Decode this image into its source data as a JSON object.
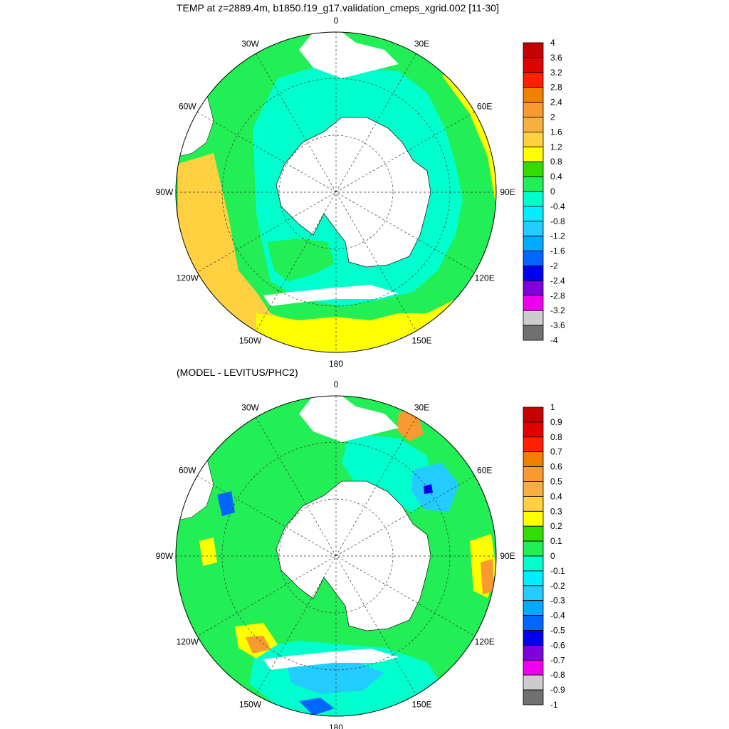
{
  "titles": {
    "top": "TEMP at z=2889.4m, b1850.f19_g17.validation_cmeps_xgrid.002 [11-30]",
    "bottom": "(MODEL - LEVITUS/PHC2)"
  },
  "longitude_labels": [
    "0",
    "30E",
    "60E",
    "90E",
    "120E",
    "150E",
    "180",
    "150W",
    "120W",
    "90W",
    "60W",
    "30W"
  ],
  "colorbars": {
    "top": {
      "labels": [
        "4",
        "3.6",
        "3.2",
        "2.8",
        "2.4",
        "2",
        "1.6",
        "1.2",
        "0.8",
        "0.4",
        "0",
        "-0.4",
        "-0.8",
        "-1.2",
        "-1.6",
        "-2",
        "-2.4",
        "-2.8",
        "-3.2",
        "-3.6",
        "-4"
      ],
      "colors": [
        "#c40000",
        "#e00000",
        "#ff2000",
        "#f08000",
        "#f89a30",
        "#f7b040",
        "#ffd040",
        "#ffff00",
        "#33dd00",
        "#22ee55",
        "#00ffcc",
        "#00eeff",
        "#22ccff",
        "#00aaff",
        "#0066ff",
        "#0000ee",
        "#8000dd",
        "#ee00ee",
        "#cccccc",
        "#707070"
      ]
    },
    "bottom": {
      "labels": [
        "1",
        "0.9",
        "0.8",
        "0.7",
        "0.6",
        "0.5",
        "0.4",
        "0.3",
        "0.2",
        "0.1",
        "0",
        "-0.1",
        "-0.2",
        "-0.3",
        "-0.4",
        "-0.5",
        "-0.6",
        "-0.7",
        "-0.8",
        "-0.9",
        "-1"
      ],
      "colors": [
        "#c40000",
        "#e00000",
        "#ff2000",
        "#f08000",
        "#f89a30",
        "#f7b040",
        "#ffd040",
        "#ffff00",
        "#33dd00",
        "#22ee55",
        "#00ffcc",
        "#00eeff",
        "#22ccff",
        "#00aaff",
        "#0066ff",
        "#0000ee",
        "#8000dd",
        "#ee00ee",
        "#cccccc",
        "#707070"
      ]
    }
  },
  "map_colors": {
    "ocean_top": "#00ffcc",
    "ocean_bottom": "#00ffcc",
    "land": "#ffffff",
    "warm_band": "#ffd040",
    "yellow_band": "#ffff00",
    "green_band": "#33dd00",
    "light_green": "#22ee55",
    "cyan_band": "#00eeff",
    "sky": "#22ccff",
    "blue": "#0066ff",
    "orange": "#f89a30"
  }
}
